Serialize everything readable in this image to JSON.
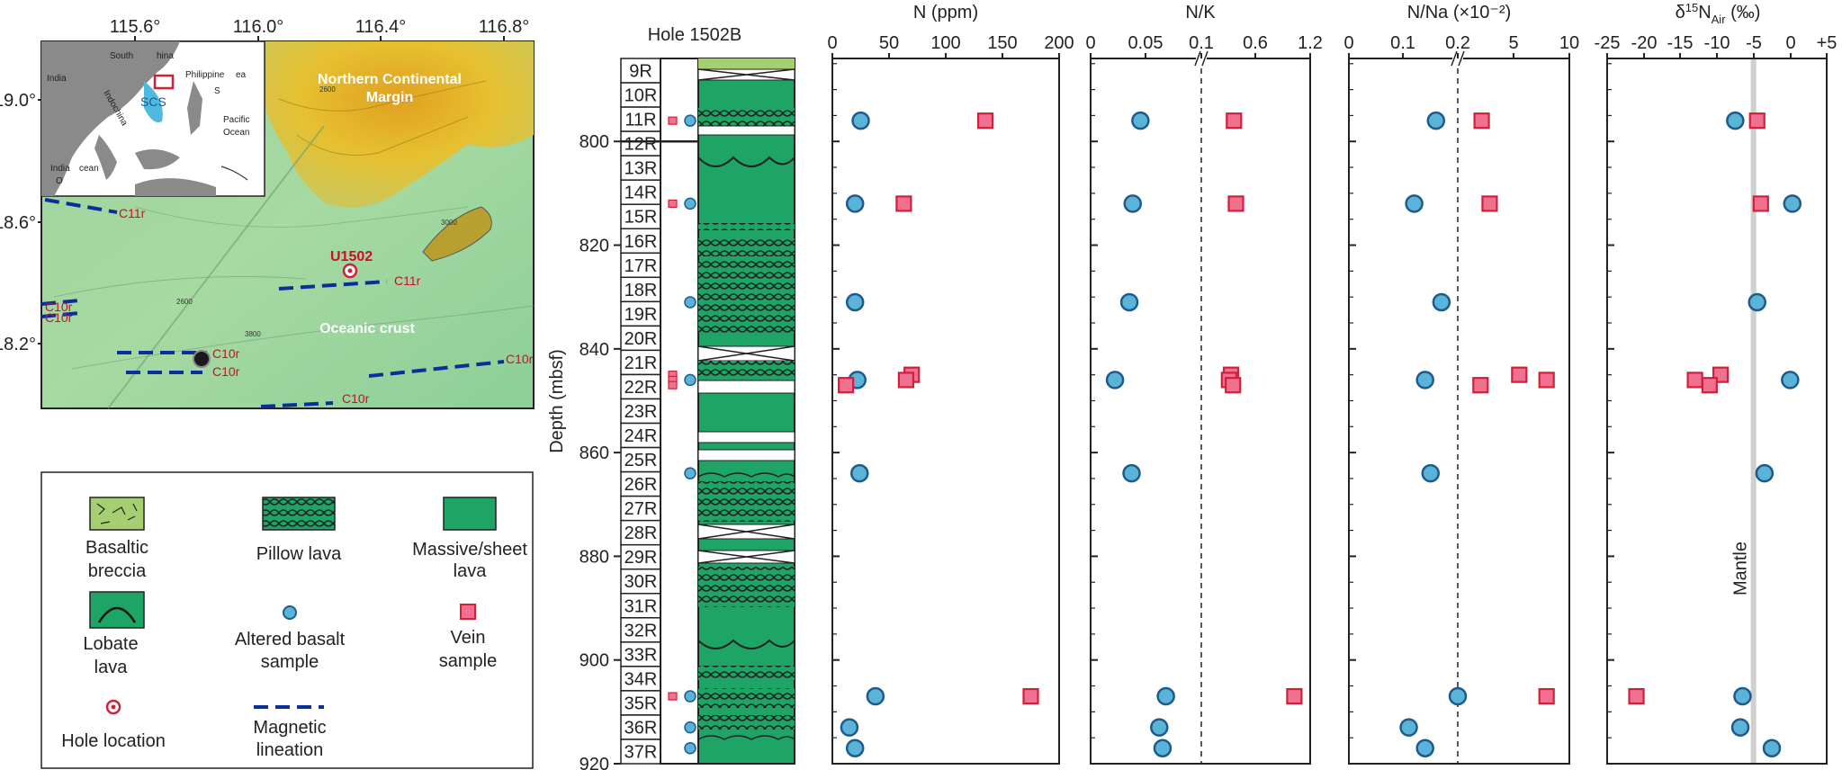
{
  "map": {
    "lon_ticks": [
      "115.6°",
      "116.0°",
      "116.4°",
      "116.8°"
    ],
    "lat_ticks": [
      "19.0°",
      "18.6°",
      "18.2°"
    ],
    "margin_label_1": "Northern Continental",
    "margin_label_2": "Margin",
    "crust_label": "Oceanic crust",
    "site_label": "U1502",
    "lineations": [
      "C11r",
      "C11r",
      "C10r",
      "C10r",
      "C10r",
      "C10r",
      "C10r",
      "C10r"
    ],
    "contours": [
      "2600",
      "3000",
      "2600",
      "3800"
    ],
    "inset": {
      "south_china_1": "South",
      "south_china_2": "hina",
      "indochina_1": "India",
      "indochina_2": "Indochina",
      "philippine": "Philippine",
      "sea_1": "ea",
      "sea_2": "S",
      "scs": "SCS",
      "pacific_1": "Pacific",
      "pacific_2": "Ocean",
      "indian_1": "India",
      "indian_2": "O",
      "indian_3": "cean"
    }
  },
  "legend": {
    "basaltic_breccia": [
      "Basaltic",
      "breccia"
    ],
    "pillow_lava": "Pillow lava",
    "massive_lava": [
      "Massive/sheet",
      "lava"
    ],
    "lobate_lava": [
      "Lobate",
      "lava"
    ],
    "altered_basalt": [
      "Altered basalt",
      "sample"
    ],
    "vein_sample": [
      "Vein",
      "sample"
    ],
    "hole_location": "Hole location",
    "magnetic_lineation": [
      "Magnetic",
      "lineation"
    ]
  },
  "colors": {
    "basalt": "#5ab4d8",
    "basalt_edge": "#1f5a8c",
    "vein": "#f07090",
    "vein_edge": "#d0203a",
    "lava_green": "#1ea565",
    "lineation": "#0a2f9a"
  },
  "column": {
    "title": "Hole 1502B",
    "cores": [
      "9R",
      "10R",
      "11R",
      "12R",
      "13R",
      "14R",
      "15R",
      "16R",
      "17R",
      "18R",
      "19R",
      "20R",
      "21R",
      "22R",
      "23R",
      "24R",
      "25R",
      "26R",
      "27R",
      "28R",
      "29R",
      "30R",
      "31R",
      "32R",
      "33R",
      "34R",
      "35R",
      "36R",
      "37R"
    ]
  },
  "chart_data": {
    "type": "scatter",
    "ylabel": "Depth (mbsf)",
    "ylim": [
      784,
      920
    ],
    "yticks": [
      800,
      820,
      840,
      860,
      880,
      900,
      920
    ],
    "panels": [
      {
        "key": "n",
        "title": "N (ppm)",
        "ticks": [
          "0",
          "50",
          "100",
          "150",
          "200"
        ],
        "basalt": [
          [
            796,
            25
          ],
          [
            812,
            20
          ],
          [
            831,
            20
          ],
          [
            846,
            22
          ],
          [
            864,
            24
          ],
          [
            907,
            38
          ],
          [
            913,
            15
          ],
          [
            917,
            20
          ]
        ],
        "vein": [
          [
            796,
            135
          ],
          [
            812,
            63
          ],
          [
            845,
            70
          ],
          [
            846,
            65
          ],
          [
            847,
            12
          ],
          [
            907,
            175
          ]
        ]
      },
      {
        "key": "nk",
        "title": "N/K",
        "ticks": [
          "0",
          "0.05",
          "0.1",
          "0.6",
          "1.2"
        ],
        "ref_label": "",
        "basalt": [
          [
            796,
            0.045
          ],
          [
            812,
            0.038
          ],
          [
            831,
            0.035
          ],
          [
            846,
            0.022
          ],
          [
            864,
            0.037
          ],
          [
            907,
            0.068
          ],
          [
            913,
            0.062
          ],
          [
            917,
            0.065
          ]
        ],
        "vein": [
          [
            796,
            0.43
          ],
          [
            812,
            0.45
          ],
          [
            845,
            0.4
          ],
          [
            846,
            0.38
          ],
          [
            847,
            0.42
          ],
          [
            907,
            1.04
          ]
        ]
      },
      {
        "key": "nna",
        "title": "N/Na (×10⁻²)",
        "ticks": [
          "0",
          "0.1",
          "0.2",
          "5",
          "10"
        ],
        "basalt": [
          [
            796,
            0.16
          ],
          [
            812,
            0.12
          ],
          [
            831,
            0.17
          ],
          [
            846,
            0.14
          ],
          [
            864,
            0.15
          ],
          [
            907,
            0.2
          ],
          [
            913,
            0.11
          ],
          [
            917,
            0.14
          ]
        ],
        "vein": [
          [
            796,
            2.3
          ],
          [
            812,
            3.0
          ],
          [
            845,
            5.6
          ],
          [
            846,
            8.0
          ],
          [
            847,
            2.2
          ],
          [
            907,
            8.0
          ]
        ]
      },
      {
        "key": "d15n",
        "title": "δ15NAir (‰)",
        "title_main": "δ",
        "title_sup": "15",
        "title_n": "N",
        "title_sub": "Air",
        "title_unit": " (‰)",
        "ticks": [
          "-25",
          "-20",
          "-15",
          "-10",
          "-5",
          "0",
          "+5"
        ],
        "mantle_label": "Mantle",
        "basalt": [
          [
            796,
            -7.5
          ],
          [
            812,
            0.3
          ],
          [
            831,
            -4.5
          ],
          [
            846,
            0.0
          ],
          [
            864,
            -3.5
          ],
          [
            907,
            -6.5
          ],
          [
            913,
            -6.8
          ],
          [
            917,
            -2.5
          ]
        ],
        "vein": [
          [
            796,
            -4.5
          ],
          [
            812,
            -4.0
          ],
          [
            845,
            -9.5
          ],
          [
            846,
            -13
          ],
          [
            847,
            -11
          ],
          [
            907,
            -21
          ]
        ]
      }
    ]
  }
}
